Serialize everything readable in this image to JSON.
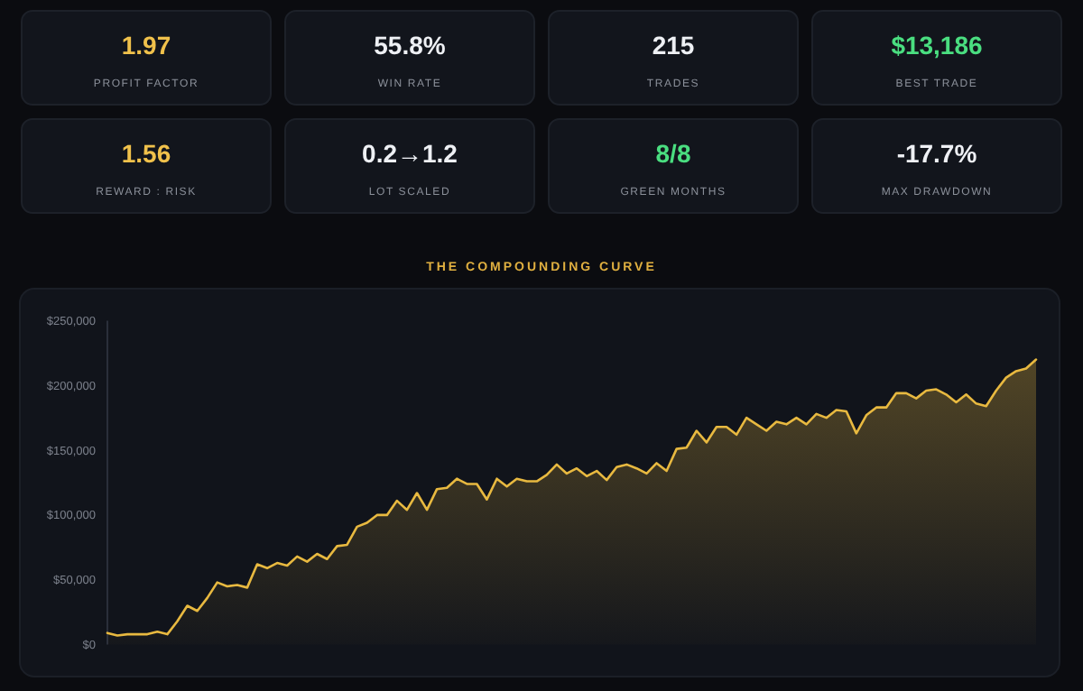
{
  "chart_data": [
    {
      "type": "other",
      "categories": [
        "PROFIT FACTOR",
        "WIN RATE",
        "TRADES",
        "BEST TRADE",
        "REWARD : RISK",
        "LOT SCALED",
        "GREEN MONTHS",
        "MAX DRAWDOWN"
      ],
      "value_labels": [
        "1.97",
        "55.8%",
        "215",
        "$13,186",
        "1.56",
        "0.2→1.2",
        "8/8",
        "-17.7%"
      ],
      "colors": [
        "#f0c14b",
        "#eef0f4",
        "#eef0f4",
        "#4ade80",
        "#f0c14b",
        "#eef0f4",
        "#4ade80",
        "#eef0f4"
      ]
    },
    {
      "type": "area",
      "title": "THE COMPOUNDING CURVE",
      "categories": [
        null,
        null,
        null,
        null,
        null,
        null,
        null,
        null,
        null,
        null,
        null,
        null,
        null,
        null,
        null,
        null,
        null,
        null,
        null,
        null,
        null,
        null,
        null,
        null,
        null,
        null,
        null,
        null,
        null,
        null,
        null,
        null,
        null,
        null,
        null,
        null,
        null,
        null,
        null,
        null,
        null,
        null,
        null,
        null,
        null,
        null,
        null,
        null,
        null,
        null,
        null,
        null,
        null,
        null,
        null,
        null,
        null,
        null,
        null,
        null,
        null,
        null,
        null,
        null,
        null,
        null,
        null,
        null,
        null,
        null,
        null,
        null,
        null,
        null,
        null,
        null,
        null,
        null,
        null,
        null,
        null,
        null,
        null,
        null,
        null,
        null,
        null,
        null,
        null,
        null,
        null,
        null,
        null,
        null
      ],
      "series": [
        {
          "color": "#e8b940",
          "values": [
            9000,
            7000,
            8000,
            8000,
            8000,
            10000,
            8000,
            18000,
            30000,
            26000,
            36000,
            48000,
            45000,
            46000,
            44000,
            62000,
            59000,
            63000,
            61000,
            68000,
            64000,
            70000,
            66000,
            76000,
            77000,
            91000,
            94000,
            100000,
            100000,
            111000,
            104000,
            117000,
            104000,
            120000,
            121000,
            128000,
            124000,
            124000,
            112000,
            128000,
            122000,
            128000,
            126000,
            126000,
            131000,
            139000,
            132000,
            136000,
            130000,
            134000,
            127000,
            137000,
            139000,
            136000,
            132000,
            140000,
            134000,
            151000,
            152000,
            165000,
            156000,
            168000,
            168000,
            162000,
            175000,
            170000,
            165000,
            172000,
            170000,
            175000,
            170000,
            178000,
            175000,
            181000,
            180000,
            163000,
            177000,
            183000,
            183000,
            194000,
            194000,
            190000,
            196000,
            197000,
            193000,
            187000,
            193000,
            186000,
            184000,
            196000,
            206000,
            211000,
            213000,
            220000
          ]
        }
      ],
      "ylim": [
        0,
        250000
      ],
      "yticks": [
        {
          "value": 0,
          "label": "$0"
        },
        {
          "value": 50000,
          "label": "$50,000"
        },
        {
          "value": 100000,
          "label": "$100,000"
        },
        {
          "value": 150000,
          "label": "$150,000"
        },
        {
          "value": 200000,
          "label": "$200,000"
        },
        {
          "value": 250000,
          "label": "$250,000"
        }
      ],
      "tick_labels": "y",
      "grid": false
    }
  ]
}
